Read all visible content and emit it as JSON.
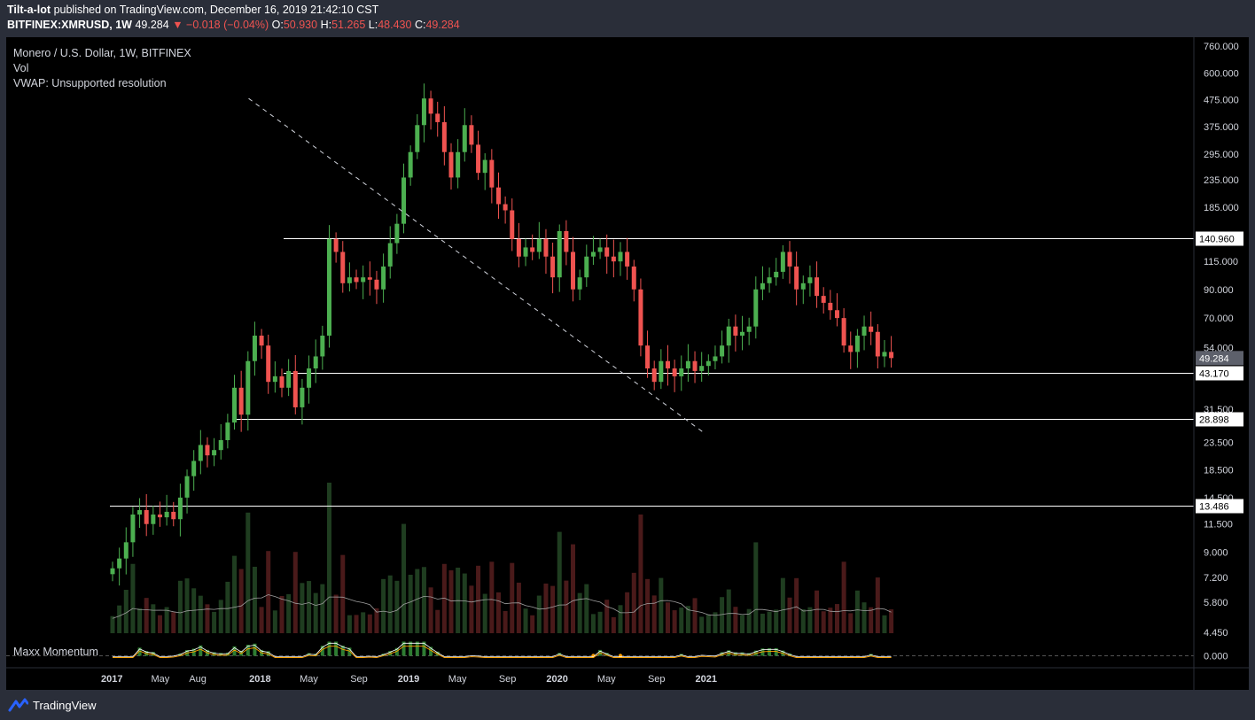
{
  "header": {
    "author": "Tilt-a-lot",
    "published_text": "published on TradingView.com, December 16, 2019 21:42:10 CST",
    "symbol": "BITFINEX:XMRUSD, 1W",
    "last": "49.284",
    "change": "▼ −0.018 (−0.04%)",
    "o_label": "O:",
    "o": "50.930",
    "h_label": "H:",
    "h": "51.265",
    "l_label": "L:",
    "l": "48.430",
    "c_label": "C:",
    "c": "49.284"
  },
  "legend": {
    "title": "Monero / U.S. Dollar, 1W, BITFINEX",
    "vol": "Vol",
    "vwap": "VWAP: Unsupported resolution",
    "momentum": "Maxx Momentum"
  },
  "footer": {
    "brand": "TradingView"
  },
  "colors": {
    "up": "#26a69a",
    "up_bright": "#4caf50",
    "down": "#ef5350",
    "background": "#000000",
    "frame": "#2a2e39"
  },
  "chart_data": {
    "type": "candlestick",
    "title": "Monero / U.S. Dollar, 1W, BITFINEX",
    "yscale": "log",
    "ylim": [
      4.45,
      760
    ],
    "y_ticks": [
      "760.000",
      "600.000",
      "475.000",
      "375.000",
      "295.000",
      "235.000",
      "185.000",
      "115.000",
      "90.000",
      "70.000",
      "54.000",
      "31.500",
      "23.500",
      "18.500",
      "14.500",
      "11.500",
      "9.000",
      "7.200",
      "5.800",
      "4.450"
    ],
    "x_ticks": [
      "2017",
      "May",
      "Aug",
      "2018",
      "May",
      "Sep",
      "2019",
      "May",
      "Sep",
      "2020",
      "May",
      "Sep",
      "2021"
    ],
    "horizontal_levels": [
      {
        "label": "140.960",
        "value": 140.96
      },
      {
        "label": "43.170",
        "value": 43.17
      },
      {
        "label": "28.898",
        "value": 28.898
      },
      {
        "label": "13.486",
        "value": 13.486
      }
    ],
    "last_price_label": "49.284",
    "trendline": {
      "from": {
        "date": "2017-12-04",
        "value": 480
      },
      "to": {
        "date": "2020-12-28",
        "value": 25.5
      },
      "style": "dashed"
    },
    "momentum_zero_label": "0.000",
    "ohlc_weekly_closes_approx": [
      7.8,
      8.5,
      9.8,
      12.5,
      13,
      11.5,
      12.5,
      12.2,
      12.8,
      12,
      14.5,
      17.5,
      20,
      23,
      21,
      22,
      24,
      28,
      38,
      30,
      48,
      60,
      55,
      40,
      42,
      38,
      44,
      32,
      38,
      45,
      50,
      60,
      140,
      125,
      95,
      100,
      96,
      100,
      98,
      90,
      110,
      135,
      160,
      240,
      300,
      380,
      480,
      420,
      390,
      300,
      240,
      300,
      380,
      320,
      250,
      280,
      220,
      190,
      180,
      140,
      120,
      130,
      125,
      140,
      120,
      100,
      150,
      125,
      90,
      100,
      120,
      125,
      130,
      120,
      115,
      125,
      110,
      90,
      55,
      45,
      40,
      48,
      45,
      42,
      45,
      48,
      44,
      46,
      48,
      50,
      55,
      65,
      60,
      62,
      65,
      90,
      95,
      100,
      105,
      125,
      110,
      90,
      95,
      100,
      85,
      80,
      75,
      70,
      55,
      52,
      60,
      65,
      62,
      50,
      52,
      49.284
    ]
  }
}
